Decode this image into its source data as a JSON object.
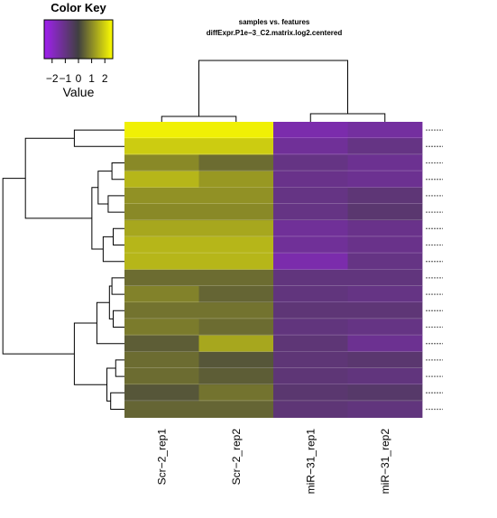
{
  "chart_data": {
    "type": "heatmap",
    "title": "samples vs. features",
    "subtitle": "diffExpr.P1e−3_C2.matrix.log2.centered",
    "columns": [
      "Scr−2_rep1",
      "Scr−2_rep2",
      "miR−31_rep1",
      "miR−31_rep2"
    ],
    "row_count": 18,
    "row_labels_legible": false,
    "values": [
      [
        2.4,
        2.4,
        -1.6,
        -1.4
      ],
      [
        1.9,
        1.9,
        -1.3,
        -1.0
      ],
      [
        1.0,
        0.6,
        -1.0,
        -1.2
      ],
      [
        1.6,
        1.2,
        -1.1,
        -1.2
      ],
      [
        1.1,
        1.1,
        -1.0,
        -0.8
      ],
      [
        1.0,
        1.0,
        -1.0,
        -0.7
      ],
      [
        1.4,
        1.4,
        -1.3,
        -1.1
      ],
      [
        1.6,
        1.6,
        -1.3,
        -1.1
      ],
      [
        1.6,
        1.6,
        -1.6,
        -1.0
      ],
      [
        0.6,
        0.6,
        -0.9,
        -0.9
      ],
      [
        0.9,
        0.5,
        -0.9,
        -1.0
      ],
      [
        0.7,
        0.7,
        -0.8,
        -0.8
      ],
      [
        0.8,
        0.6,
        -0.9,
        -1.0
      ],
      [
        0.4,
        1.4,
        -0.8,
        -1.2
      ],
      [
        0.6,
        0.3,
        -0.8,
        -0.7
      ],
      [
        0.6,
        0.4,
        -0.8,
        -0.9
      ],
      [
        0.3,
        0.7,
        -0.7,
        -0.6
      ],
      [
        0.5,
        0.5,
        -0.8,
        -0.9
      ]
    ],
    "color_key": {
      "title": "Color Key",
      "xlabel": "Value",
      "ticks": [
        "−2",
        "−1",
        "0",
        "1",
        "2"
      ],
      "range": [
        -2.6,
        2.6
      ],
      "colors": {
        "low": "#a020f0",
        "mid": "#404040",
        "high": "#ffff00"
      }
    },
    "dendrograms": {
      "rows": true,
      "columns": true
    },
    "column_tree": "((Scr−2_rep1,Scr−2_rep2),(miR−31_rep1,miR−31_rep2))",
    "row_tree": "((r1,r2),(((r3,r4),(r5,r6)),((r7,r8),r9))),(((r10,r11),(r12,r13)),r14),((r15,r16),(r17,r18))"
  }
}
